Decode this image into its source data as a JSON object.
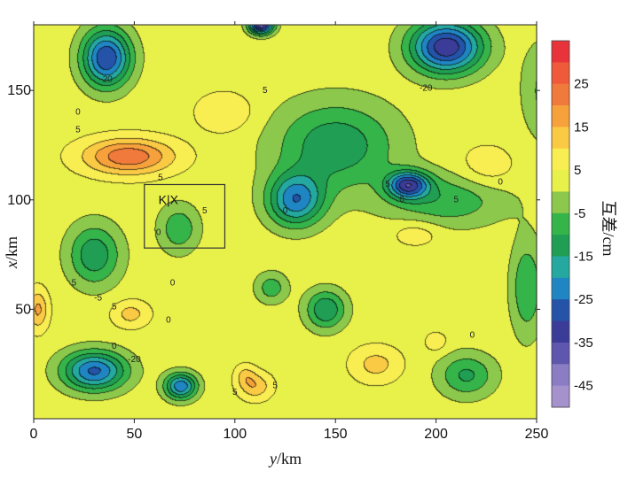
{
  "chart_data": {
    "type": "heatmap",
    "subtype": "filled-contour",
    "title": "",
    "xlabel": "y/km",
    "xlabel_italic": "y",
    "xlabel_unit": "/km",
    "ylabel": "x/km",
    "ylabel_italic": "x",
    "ylabel_unit": "/km",
    "xlim": [
      0,
      250
    ],
    "ylim": [
      0,
      180
    ],
    "xticks": [
      0,
      50,
      100,
      150,
      200,
      250
    ],
    "yticks": [
      50,
      100,
      150
    ],
    "colorbar": {
      "title": "互差/cm",
      "ticks": [
        25,
        15,
        5,
        -5,
        -15,
        -25,
        -35,
        -45
      ],
      "levels": [
        {
          "min": 30,
          "max": 35,
          "color": "#e8333a"
        },
        {
          "min": 25,
          "max": 30,
          "color": "#ee5a3a"
        },
        {
          "min": 20,
          "max": 25,
          "color": "#f07a3b"
        },
        {
          "min": 15,
          "max": 20,
          "color": "#f6a13c"
        },
        {
          "min": 10,
          "max": 15,
          "color": "#fbca45"
        },
        {
          "min": 5,
          "max": 10,
          "color": "#f8ee52"
        },
        {
          "min": 0,
          "max": 5,
          "color": "#e8f04a"
        },
        {
          "min": -5,
          "max": 0,
          "color": "#8cc84b"
        },
        {
          "min": -10,
          "max": -5,
          "color": "#35b44a"
        },
        {
          "min": -15,
          "max": -10,
          "color": "#1f9e54"
        },
        {
          "min": -20,
          "max": -15,
          "color": "#25a8a0"
        },
        {
          "min": -25,
          "max": -20,
          "color": "#1f86c3"
        },
        {
          "min": -30,
          "max": -25,
          "color": "#2453a8"
        },
        {
          "min": -35,
          "max": -30,
          "color": "#3b3c98"
        },
        {
          "min": -40,
          "max": -35,
          "color": "#5f56ad"
        },
        {
          "min": -45,
          "max": -40,
          "color": "#8b7dc4"
        },
        {
          "min": -50,
          "max": -45,
          "color": "#a592cd"
        }
      ]
    },
    "features": [
      {
        "y": 36,
        "x": 165,
        "value": -30,
        "sy": 12,
        "sx": 13
      },
      {
        "y": 47,
        "x": 120,
        "value": 24,
        "sy": 22,
        "sx": 8
      },
      {
        "y": 30,
        "x": 75,
        "value": -14,
        "sy": 13,
        "sx": 14
      },
      {
        "y": 30,
        "x": 22,
        "value": -26,
        "sy": 16,
        "sx": 9
      },
      {
        "y": 73,
        "x": 15,
        "value": -24,
        "sy": 8,
        "sx": 6
      },
      {
        "y": 72,
        "x": 87,
        "value": -9,
        "sy": 10,
        "sx": 11
      },
      {
        "y": 2,
        "x": 50,
        "value": 16,
        "sy": 5,
        "sx": 9
      },
      {
        "y": 48,
        "x": 48,
        "value": 12,
        "sy": 9,
        "sx": 6
      },
      {
        "y": 95,
        "x": 140,
        "value": 10,
        "sy": 14,
        "sx": 9
      },
      {
        "y": 110,
        "x": 15,
        "value": 14,
        "sy": 8,
        "sx": 6
      },
      {
        "y": 120,
        "x": 0,
        "value": 2,
        "sy": 100,
        "sx": 3
      },
      {
        "y": 205,
        "x": 170,
        "value": -34,
        "sy": 18,
        "sx": 12
      },
      {
        "y": 113,
        "x": 180,
        "value": -38,
        "sy": 6,
        "sx": 4
      },
      {
        "y": 130,
        "x": 100,
        "value": -23,
        "sy": 14,
        "sx": 12
      },
      {
        "y": 150,
        "x": 125,
        "value": -14,
        "sy": 30,
        "sx": 20
      },
      {
        "y": 186,
        "x": 107,
        "value": -28,
        "sy": 10,
        "sx": 6
      },
      {
        "y": 205,
        "x": 100,
        "value": -9,
        "sy": 30,
        "sx": 12
      },
      {
        "y": 225,
        "x": 115,
        "value": 9,
        "sy": 14,
        "sx": 10
      },
      {
        "y": 190,
        "x": 85,
        "value": 9,
        "sy": 12,
        "sx": 6
      },
      {
        "y": 145,
        "x": 50,
        "value": -15,
        "sy": 10,
        "sx": 9
      },
      {
        "y": 118,
        "x": 60,
        "value": -8,
        "sy": 8,
        "sx": 7
      },
      {
        "y": 170,
        "x": 25,
        "value": 12,
        "sy": 12,
        "sx": 8
      },
      {
        "y": 215,
        "x": 20,
        "value": -11,
        "sy": 14,
        "sx": 10
      },
      {
        "y": 245,
        "x": 60,
        "value": -10,
        "sy": 8,
        "sx": 22
      },
      {
        "y": 255,
        "x": 150,
        "value": -7,
        "sy": 12,
        "sx": 22
      },
      {
        "y": 105,
        "x": 20,
        "value": 10,
        "sy": 5,
        "sx": 5
      },
      {
        "y": 200,
        "x": 35,
        "value": 8,
        "sy": 6,
        "sx": 5
      }
    ],
    "background_value": 3,
    "contour_labels": [
      {
        "y": 36,
        "x": 155,
        "text": "-20"
      },
      {
        "y": 22,
        "x": 140,
        "text": "0"
      },
      {
        "y": 22,
        "x": 132,
        "text": "5"
      },
      {
        "y": 63,
        "x": 110,
        "text": "5"
      },
      {
        "y": 20,
        "x": 62,
        "text": "5"
      },
      {
        "y": 32,
        "x": 55,
        "text": "-5"
      },
      {
        "y": 40,
        "x": 51,
        "text": "5"
      },
      {
        "y": 40,
        "x": 33,
        "text": "0"
      },
      {
        "y": 50,
        "x": 27,
        "text": "-20"
      },
      {
        "y": 62,
        "x": 85,
        "text": "0"
      },
      {
        "y": 69,
        "x": 62,
        "text": "0"
      },
      {
        "y": 67,
        "x": 45,
        "text": "0"
      },
      {
        "y": 85,
        "x": 95,
        "text": "5"
      },
      {
        "y": 120,
        "x": 15,
        "text": "5"
      },
      {
        "y": 100,
        "x": 12,
        "text": "5"
      },
      {
        "y": 125,
        "x": 95,
        "text": "0"
      },
      {
        "y": 176,
        "x": 107,
        "text": "5"
      },
      {
        "y": 183,
        "x": 100,
        "text": "0"
      },
      {
        "y": 195,
        "x": 151,
        "text": "-20"
      },
      {
        "y": 210,
        "x": 100,
        "text": "5"
      },
      {
        "y": 232,
        "x": 108,
        "text": "0"
      },
      {
        "y": 218,
        "x": 38,
        "text": "0"
      },
      {
        "y": 115,
        "x": 150,
        "text": "5"
      }
    ],
    "annotation_box": {
      "y0": 55,
      "y1": 95,
      "x0": 78,
      "x1": 107,
      "label": "K|X",
      "label_y": 62,
      "label_x": 98
    }
  }
}
